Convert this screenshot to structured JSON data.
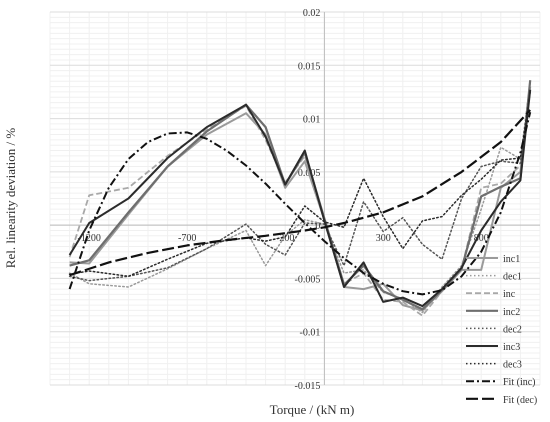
{
  "chart_data": {
    "type": "line",
    "xlabel": "Torque / (kN m)",
    "ylabel": "Rel. linearity deviation / %",
    "xlim": [
      -1400,
      1100
    ],
    "ylim": [
      -0.015,
      0.02
    ],
    "x_tick_labels": [
      "-1200",
      "-700",
      "-200",
      "300",
      "800"
    ],
    "x_tick_values": [
      -1200,
      -700,
      -200,
      300,
      800
    ],
    "y_tick_labels": [
      "-0.015",
      "-0.01",
      "-0.005",
      "0",
      "0.005",
      "0.01",
      "0.015",
      "0.02"
    ],
    "y_tick_values": [
      -0.015,
      -0.01,
      -0.005,
      0,
      0.005,
      0.01,
      0.015,
      0.02
    ],
    "grid": true,
    "legend_position": "right",
    "series": [
      {
        "name": "inc1",
        "color": "#9a9a9a",
        "dash": "solid",
        "width": 2,
        "x": [
          -1300,
          -1200,
          -1000,
          -800,
          -600,
          -400,
          -300,
          -200,
          -100,
          0,
          100,
          200,
          300,
          400,
          500,
          600,
          700,
          800,
          900,
          1000,
          1050
        ],
        "y": [
          -0.0035,
          -0.0036,
          0.001,
          0.0055,
          0.0085,
          0.0105,
          0.0085,
          0.0035,
          0.006,
          0.0005,
          -0.0058,
          -0.006,
          -0.0055,
          -0.0075,
          -0.008,
          -0.0062,
          -0.0042,
          -0.0042,
          0.0035,
          0.005,
          0.013
        ]
      },
      {
        "name": "dec1",
        "color": "#9a9a9a",
        "dash": "dot",
        "width": 1.5,
        "x": [
          -1300,
          -1200,
          -1000,
          -800,
          -600,
          -400,
          -300,
          -200,
          -100,
          0,
          100,
          200,
          300,
          400,
          500,
          600,
          700,
          800,
          900,
          1000,
          1050
        ],
        "y": [
          -0.0045,
          -0.0055,
          -0.0058,
          -0.0041,
          -0.0022,
          -0.0005,
          -0.0038,
          -0.001,
          0.0005,
          0.0001,
          -0.0045,
          -0.0042,
          -0.0063,
          -0.0069,
          -0.0082,
          -0.0058,
          -0.0038,
          0.0015,
          0.0073,
          0.0062,
          0.0134
        ]
      },
      {
        "name": "inc",
        "color": "#a8a8a8",
        "dash": "dash",
        "width": 1.8,
        "x": [
          -1300,
          -1200,
          -1000,
          -800,
          -600,
          -400,
          -300,
          -200,
          -100,
          0,
          100,
          200,
          300,
          400,
          500,
          600,
          700,
          800,
          900,
          1000,
          1050
        ],
        "y": [
          -0.003,
          0.0028,
          0.0035,
          0.0065,
          0.009,
          0.0112,
          0.008,
          0.004,
          0.0065,
          0.0004,
          -0.0055,
          -0.0045,
          -0.007,
          -0.0072,
          -0.0085,
          -0.0062,
          -0.0041,
          0.0035,
          0.0039,
          0.0056,
          0.013
        ]
      },
      {
        "name": "inc2",
        "color": "#6e6e6e",
        "dash": "solid",
        "width": 2.2,
        "x": [
          -1300,
          -1200,
          -1000,
          -800,
          -600,
          -400,
          -300,
          -200,
          -100,
          0,
          100,
          200,
          300,
          400,
          500,
          600,
          700,
          800,
          900,
          1000,
          1050
        ],
        "y": [
          -0.0038,
          -0.0033,
          0.0012,
          0.0055,
          0.0088,
          0.0113,
          0.0092,
          0.0038,
          0.0068,
          0.0006,
          -0.0056,
          -0.0038,
          -0.0062,
          -0.007,
          -0.0079,
          -0.0061,
          -0.0041,
          0.0027,
          0.0036,
          0.0044,
          0.0136
        ]
      },
      {
        "name": "dec2",
        "color": "#555555",
        "dash": "dot",
        "width": 1.5,
        "x": [
          -1300,
          -1200,
          -1000,
          -800,
          -600,
          -400,
          -300,
          -200,
          -100,
          0,
          100,
          200,
          300,
          400,
          500,
          600,
          700,
          800,
          900,
          1000,
          1050
        ],
        "y": [
          -0.0048,
          -0.0052,
          -0.0048,
          -0.004,
          -0.0022,
          0.0001,
          -0.0018,
          -0.0028,
          0.0002,
          0.0001,
          -0.0038,
          0.0022,
          -0.0006,
          0.0007,
          -0.0018,
          -0.0032,
          0.0025,
          0.0055,
          0.006,
          0.0058,
          0.0125
        ]
      },
      {
        "name": "inc3",
        "color": "#2b2b2b",
        "dash": "solid",
        "width": 2,
        "x": [
          -1300,
          -1200,
          -1000,
          -800,
          -600,
          -400,
          -300,
          -200,
          -100,
          0,
          100,
          200,
          300,
          400,
          500,
          600,
          700,
          800,
          900,
          1000,
          1050
        ],
        "y": [
          -0.0028,
          0.0002,
          0.0025,
          0.0063,
          0.0092,
          0.0113,
          0.0083,
          0.0038,
          0.007,
          0.0004,
          -0.0058,
          -0.0035,
          -0.0072,
          -0.0068,
          -0.0076,
          -0.006,
          -0.004,
          -0.0005,
          0.0022,
          0.0042,
          0.0127
        ]
      },
      {
        "name": "dec3",
        "color": "#2b2b2b",
        "dash": "dot",
        "width": 1.5,
        "x": [
          -1300,
          -1200,
          -1000,
          -800,
          -600,
          -400,
          -300,
          -200,
          -100,
          0,
          100,
          200,
          300,
          400,
          500,
          600,
          700,
          800,
          900,
          1000,
          1050
        ],
        "y": [
          -0.0046,
          -0.0043,
          -0.0048,
          -0.0032,
          -0.0017,
          -0.0012,
          -0.0015,
          -0.0011,
          0.0018,
          0.0003,
          -0.0002,
          0.0044,
          0.0008,
          -0.0022,
          0.0004,
          0.0008,
          0.0028,
          0.0043,
          0.0061,
          0.0063,
          0.0125
        ]
      },
      {
        "name": "Fit (inc)",
        "color": "#111111",
        "dash": "dashdot",
        "width": 2,
        "x": [
          -1300,
          -1200,
          -1100,
          -1000,
          -900,
          -800,
          -700,
          -600,
          -500,
          -400,
          -300,
          -200,
          -100,
          0,
          100,
          200,
          300,
          400,
          500,
          600,
          700,
          800,
          900,
          1000,
          1050
        ],
        "y": [
          -0.006,
          -0.0005,
          0.0035,
          0.0062,
          0.0078,
          0.0086,
          0.0087,
          0.0081,
          0.007,
          0.0056,
          0.0039,
          0.002,
          0.0002,
          -0.0015,
          -0.0031,
          -0.0045,
          -0.0055,
          -0.0062,
          -0.0065,
          -0.0061,
          -0.0048,
          -0.0025,
          0.0012,
          0.0068,
          0.0106
        ]
      },
      {
        "name": "Fit (dec)",
        "color": "#111111",
        "dash": "longdash",
        "width": 2.2,
        "x": [
          -1300,
          -1100,
          -900,
          -700,
          -500,
          -300,
          -100,
          0,
          100,
          300,
          500,
          700,
          900,
          1050
        ],
        "y": [
          -0.0047,
          -0.0035,
          -0.0026,
          -0.0019,
          -0.0014,
          -0.001,
          -0.0005,
          -0.0002,
          0.0002,
          0.0012,
          0.0027,
          0.005,
          0.0078,
          0.0108
        ]
      }
    ]
  }
}
